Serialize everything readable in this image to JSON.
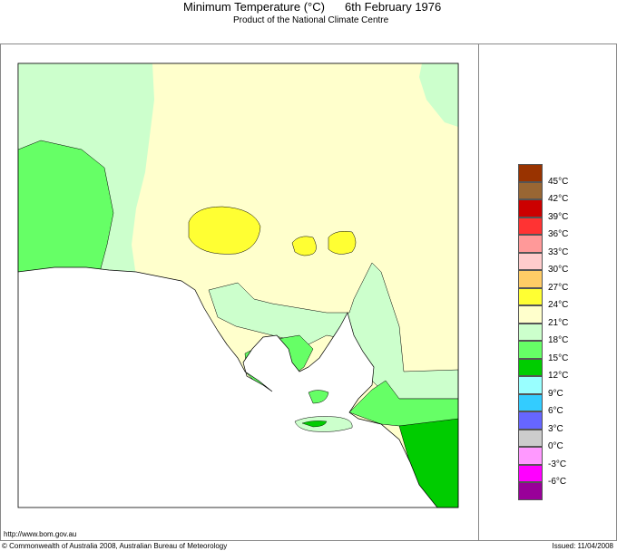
{
  "header": {
    "title": "Minimum Temperature (°C)",
    "date": "6th February 1976",
    "subtitle": "Product of the National Climate Centre"
  },
  "footer": {
    "url": "http://www.bom.gov.au",
    "copyright": "© Commonwealth of Australia 2008, Australian Bureau of Meteorology",
    "issued": "Issued: 11/04/2008"
  },
  "legend": {
    "colors": [
      "#993300",
      "#996633",
      "#cc0000",
      "#ff3333",
      "#ff9999",
      "#ffcccc",
      "#ffcc66",
      "#ffff33",
      "#ffffcc",
      "#ccffcc",
      "#66ff66",
      "#00cc00",
      "#99ffff",
      "#33ccff",
      "#6666ff",
      "#cccccc",
      "#ff99ff",
      "#ff00ff",
      "#990099"
    ],
    "labels": [
      "45°C",
      "42°C",
      "39°C",
      "36°C",
      "33°C",
      "30°C",
      "27°C",
      "24°C",
      "21°C",
      "18°C",
      "15°C",
      "12°C",
      "9°C",
      "6°C",
      "3°C",
      "0°C",
      "-3°C",
      "-6°C"
    ]
  },
  "map_colors": {
    "ocean": "#ffffff",
    "18-21": "#ccffcc",
    "21-24": "#ffffcc",
    "24-27": "#ffff33",
    "15-18": "#66ff66",
    "12-15": "#00cc00"
  }
}
